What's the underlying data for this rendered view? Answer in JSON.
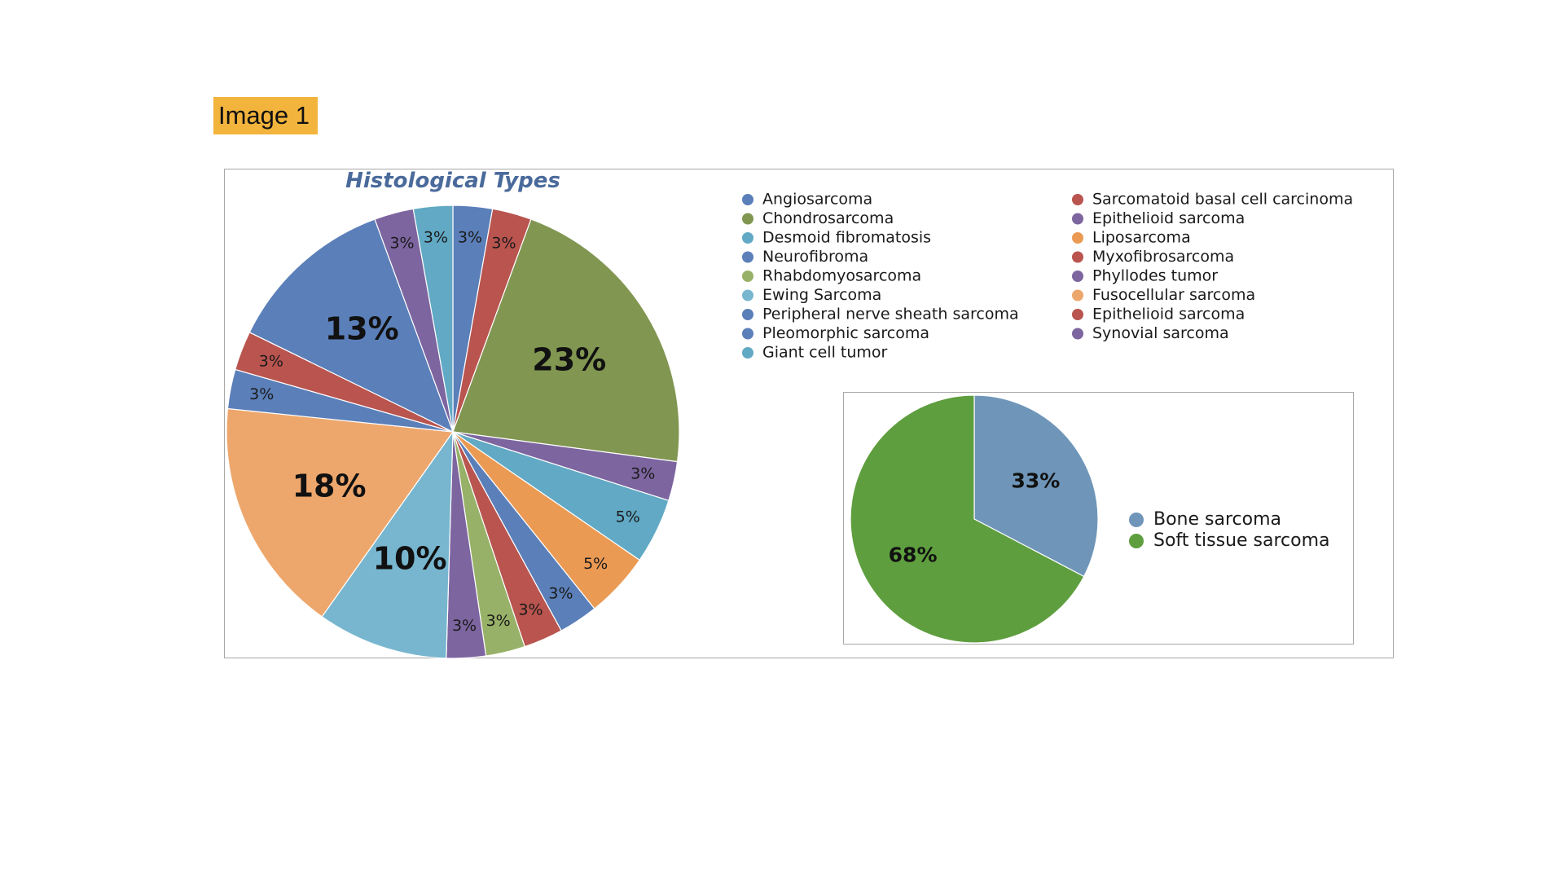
{
  "badge": {
    "label": "Image 1"
  },
  "chart_data": [
    {
      "type": "pie",
      "title": "Histological Types",
      "slices": [
        {
          "name": "Angiosarcoma",
          "value": 3,
          "label": "3%",
          "color": "#5B7FB9"
        },
        {
          "name": "Sarcomatoid basal cell carcinoma",
          "value": 3,
          "label": "3%",
          "color": "#B9544F"
        },
        {
          "name": "Chondrosarcoma",
          "value": 23,
          "label": "23%",
          "color": "#819651"
        },
        {
          "name": "Epithelioid sarcoma",
          "value": 3,
          "label": "3%",
          "color": "#7D65A0"
        },
        {
          "name": "Desmoid fibromatosis",
          "value": 5,
          "label": "5%",
          "color": "#61A9C4"
        },
        {
          "name": "Liposarcoma",
          "value": 5,
          "label": "5%",
          "color": "#EB9A53"
        },
        {
          "name": "Neurofibroma",
          "value": 3,
          "label": "3%",
          "color": "#5B7FB9"
        },
        {
          "name": "Myxofibrosarcoma",
          "value": 3,
          "label": "3%",
          "color": "#B9544F"
        },
        {
          "name": "Rhabdomyosarcoma",
          "value": 3,
          "label": "3%",
          "color": "#98B168"
        },
        {
          "name": "Phyllodes tumor",
          "value": 3,
          "label": "3%",
          "color": "#7D65A0"
        },
        {
          "name": "Ewing Sarcoma",
          "value": 10,
          "label": "10%",
          "color": "#78B6CF"
        },
        {
          "name": "Fusocellular sarcoma",
          "value": 18,
          "label": "18%",
          "color": "#EDA76C"
        },
        {
          "name": "Peripheral nerve sheath sarcoma",
          "value": 3,
          "label": "3%",
          "color": "#5B7FB9"
        },
        {
          "name": "Epithelioid sarcoma",
          "value": 3,
          "label": "3%",
          "color": "#B9544F"
        },
        {
          "name": "Pleomorphic sarcoma",
          "value": 13,
          "label": "13%",
          "color": "#5B7FB9"
        },
        {
          "name": "Synovial sarcoma",
          "value": 3,
          "label": "3%",
          "color": "#7D65A0"
        },
        {
          "name": "Giant cell tumor",
          "value": 3,
          "label": "3%",
          "color": "#61A9C4"
        }
      ],
      "legend": {
        "placement": "right",
        "columns": [
          [
            {
              "name": "Angiosarcoma",
              "color": "#5B7FB9"
            },
            {
              "name": "Chondrosarcoma",
              "color": "#819651"
            },
            {
              "name": "Desmoid fibromatosis",
              "color": "#61A9C4"
            },
            {
              "name": "Neurofibroma",
              "color": "#5B7FB9"
            },
            {
              "name": "Rhabdomyosarcoma",
              "color": "#98B168"
            },
            {
              "name": "Ewing Sarcoma",
              "color": "#78B6CF"
            },
            {
              "name": "Peripheral nerve sheath sarcoma",
              "color": "#5B7FB9"
            },
            {
              "name": "Pleomorphic sarcoma",
              "color": "#5B7FB9"
            },
            {
              "name": "Giant cell tumor",
              "color": "#61A9C4"
            }
          ],
          [
            {
              "name": "Sarcomatoid basal cell carcinoma",
              "color": "#B9544F"
            },
            {
              "name": "Epithelioid sarcoma",
              "color": "#7D65A0"
            },
            {
              "name": "Liposarcoma",
              "color": "#EB9A53"
            },
            {
              "name": "Myxofibrosarcoma",
              "color": "#B9544F"
            },
            {
              "name": "Phyllodes tumor",
              "color": "#7D65A0"
            },
            {
              "name": "Fusocellular sarcoma",
              "color": "#EDA76C"
            },
            {
              "name": "Epithelioid sarcoma",
              "color": "#B9544F"
            },
            {
              "name": "Synovial sarcoma",
              "color": "#7D65A0"
            }
          ]
        ]
      }
    },
    {
      "type": "pie",
      "title": "",
      "slices": [
        {
          "name": "Bone sarcoma",
          "value": 33,
          "label": "33%",
          "color": "#6F96B9"
        },
        {
          "name": "Soft tissue sarcoma",
          "value": 68,
          "label": "68%",
          "color": "#5E9E3E"
        }
      ],
      "legend": {
        "placement": "right"
      }
    }
  ]
}
